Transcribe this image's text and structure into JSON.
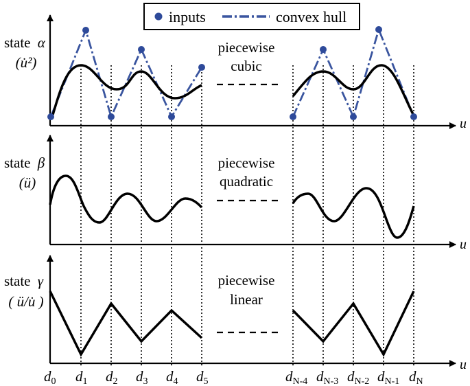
{
  "legend": {
    "inputs_label": "inputs",
    "hull_label": "convex hull"
  },
  "colors": {
    "input_dot": "#2E4A9A",
    "hull_line": "#3A559F",
    "curve": "#000000",
    "axis": "#000000"
  },
  "panels": [
    {
      "state_prefix": "state",
      "state_symbol": "α",
      "expr": "(u̇²)",
      "method_line1": "piecewise",
      "method_line2": "cubic",
      "axis_label": "u"
    },
    {
      "state_prefix": "state",
      "state_symbol": "β",
      "expr": "(ü)",
      "method_line1": "piecewise",
      "method_line2": "quadratic",
      "axis_label": "u"
    },
    {
      "state_prefix": "state",
      "state_symbol": "γ",
      "expr": "( ü/u̇ )",
      "method_line1": "piecewise",
      "method_line2": "linear",
      "axis_label": "u"
    }
  ],
  "knots": [
    {
      "base": "d",
      "sub": "0"
    },
    {
      "base": "d",
      "sub": "1"
    },
    {
      "base": "d",
      "sub": "2"
    },
    {
      "base": "d",
      "sub": "3"
    },
    {
      "base": "d",
      "sub": "4"
    },
    {
      "base": "d",
      "sub": "5"
    },
    {
      "base": "d",
      "sub": "N-4"
    },
    {
      "base": "d",
      "sub": "N-3"
    },
    {
      "base": "d",
      "sub": "N-2"
    },
    {
      "base": "d",
      "sub": "N-1"
    },
    {
      "base": "d",
      "sub": "N"
    }
  ]
}
